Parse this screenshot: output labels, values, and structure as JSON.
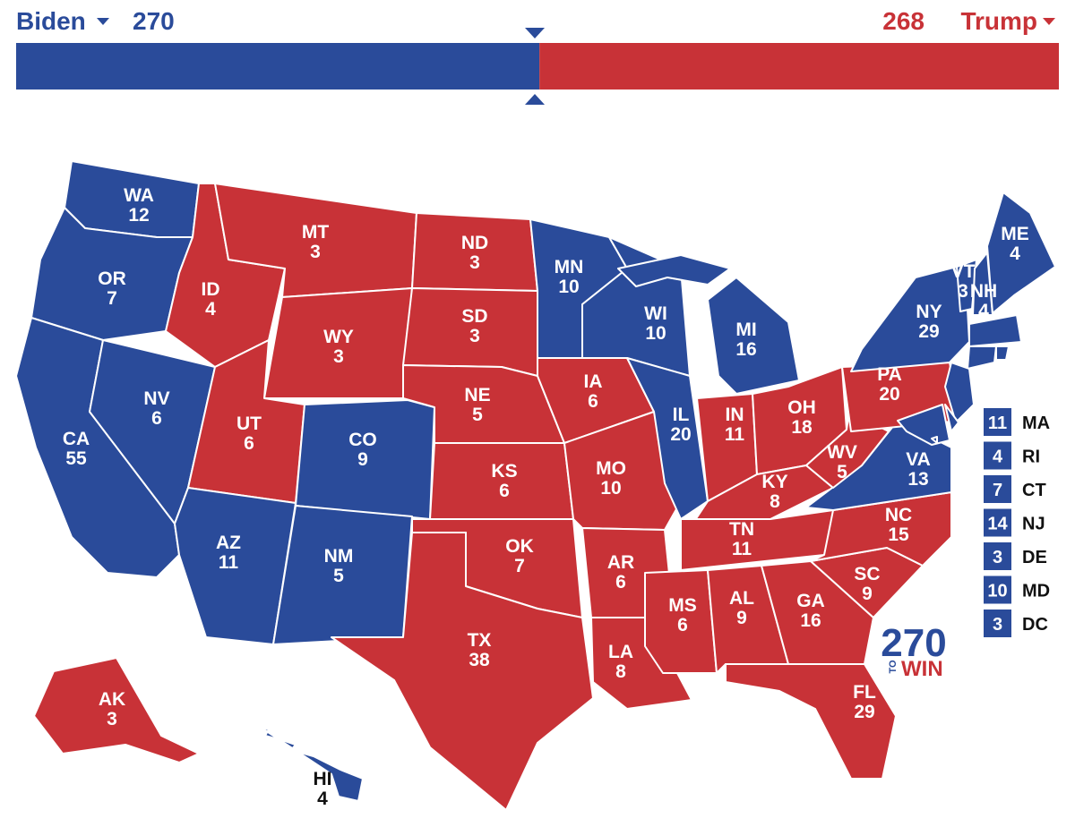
{
  "header": {
    "left": {
      "name": "Biden",
      "votes": 270
    },
    "right": {
      "name": "Trump",
      "votes": 268
    }
  },
  "colors": {
    "D": "#2a4b9a",
    "R": "#c83237"
  },
  "states": [
    {
      "abbr": "WA",
      "ev": 12,
      "party": "D"
    },
    {
      "abbr": "OR",
      "ev": 7,
      "party": "D"
    },
    {
      "abbr": "CA",
      "ev": 55,
      "party": "D"
    },
    {
      "abbr": "NV",
      "ev": 6,
      "party": "D"
    },
    {
      "abbr": "ID",
      "ev": 4,
      "party": "R"
    },
    {
      "abbr": "MT",
      "ev": 3,
      "party": "R"
    },
    {
      "abbr": "WY",
      "ev": 3,
      "party": "R"
    },
    {
      "abbr": "UT",
      "ev": 6,
      "party": "R"
    },
    {
      "abbr": "CO",
      "ev": 9,
      "party": "D"
    },
    {
      "abbr": "AZ",
      "ev": 11,
      "party": "D"
    },
    {
      "abbr": "NM",
      "ev": 5,
      "party": "D"
    },
    {
      "abbr": "ND",
      "ev": 3,
      "party": "R"
    },
    {
      "abbr": "SD",
      "ev": 3,
      "party": "R"
    },
    {
      "abbr": "NE",
      "ev": 5,
      "party": "R"
    },
    {
      "abbr": "KS",
      "ev": 6,
      "party": "R"
    },
    {
      "abbr": "OK",
      "ev": 7,
      "party": "R"
    },
    {
      "abbr": "TX",
      "ev": 38,
      "party": "R"
    },
    {
      "abbr": "MN",
      "ev": 10,
      "party": "D"
    },
    {
      "abbr": "IA",
      "ev": 6,
      "party": "R"
    },
    {
      "abbr": "MO",
      "ev": 10,
      "party": "R"
    },
    {
      "abbr": "AR",
      "ev": 6,
      "party": "R"
    },
    {
      "abbr": "LA",
      "ev": 8,
      "party": "R"
    },
    {
      "abbr": "WI",
      "ev": 10,
      "party": "D"
    },
    {
      "abbr": "IL",
      "ev": 20,
      "party": "D"
    },
    {
      "abbr": "MI",
      "ev": 16,
      "party": "D"
    },
    {
      "abbr": "IN",
      "ev": 11,
      "party": "R"
    },
    {
      "abbr": "OH",
      "ev": 18,
      "party": "R"
    },
    {
      "abbr": "KY",
      "ev": 8,
      "party": "R"
    },
    {
      "abbr": "TN",
      "ev": 11,
      "party": "R"
    },
    {
      "abbr": "MS",
      "ev": 6,
      "party": "R"
    },
    {
      "abbr": "AL",
      "ev": 9,
      "party": "R"
    },
    {
      "abbr": "GA",
      "ev": 16,
      "party": "R"
    },
    {
      "abbr": "FL",
      "ev": 29,
      "party": "R"
    },
    {
      "abbr": "SC",
      "ev": 9,
      "party": "R"
    },
    {
      "abbr": "NC",
      "ev": 15,
      "party": "R"
    },
    {
      "abbr": "VA",
      "ev": 13,
      "party": "D"
    },
    {
      "abbr": "WV",
      "ev": 5,
      "party": "R"
    },
    {
      "abbr": "PA",
      "ev": 20,
      "party": "R"
    },
    {
      "abbr": "NY",
      "ev": 29,
      "party": "D"
    },
    {
      "abbr": "VT",
      "ev": 3,
      "party": "D"
    },
    {
      "abbr": "NH",
      "ev": 4,
      "party": "D"
    },
    {
      "abbr": "ME",
      "ev": 4,
      "party": "D"
    },
    {
      "abbr": "AK",
      "ev": 3,
      "party": "R"
    },
    {
      "abbr": "HI",
      "ev": 4,
      "party": "D"
    }
  ],
  "small_states": [
    {
      "abbr": "MA",
      "ev": 11,
      "party": "D"
    },
    {
      "abbr": "RI",
      "ev": 4,
      "party": "D"
    },
    {
      "abbr": "CT",
      "ev": 7,
      "party": "D"
    },
    {
      "abbr": "NJ",
      "ev": 14,
      "party": "D"
    },
    {
      "abbr": "DE",
      "ev": 3,
      "party": "D"
    },
    {
      "abbr": "MD",
      "ev": 10,
      "party": "D"
    },
    {
      "abbr": "DC",
      "ev": 3,
      "party": "D"
    }
  ],
  "logo": {
    "number": "270",
    "to": "TO",
    "win": "WIN"
  }
}
